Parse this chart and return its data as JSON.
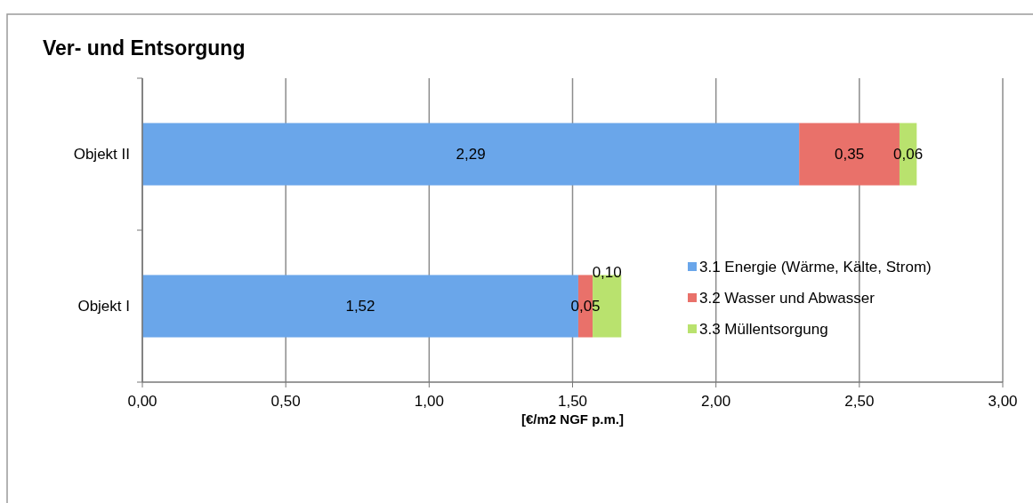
{
  "chart_data": {
    "type": "bar",
    "orientation": "horizontal",
    "stacked": true,
    "title": "Ver- und Entsorgung",
    "xlabel": "[€/m2 NGF p.m.]",
    "categories": [
      "Objekt II",
      "Objekt I"
    ],
    "series": [
      {
        "name": "3.1 Energie (Wärme, Kälte, Strom)",
        "color": "#6aa6ea",
        "values": [
          2.29,
          1.52
        ],
        "value_labels": [
          "2,29",
          "1,52"
        ]
      },
      {
        "name": "3.2 Wasser und Abwasser",
        "color": "#e9716a",
        "values": [
          0.35,
          0.05
        ],
        "value_labels": [
          "0,35",
          "0,05"
        ]
      },
      {
        "name": "3.3 Müllentsorgung",
        "color": "#b9e26e",
        "values": [
          0.06,
          0.1
        ],
        "value_labels": [
          "0,06",
          "0,10"
        ]
      }
    ],
    "xlim": [
      0,
      3
    ],
    "xticks": [
      {
        "value": 0,
        "label": "0,00"
      },
      {
        "value": 0.5,
        "label": "0,50"
      },
      {
        "value": 1,
        "label": "1,00"
      },
      {
        "value": 1.5,
        "label": "1,50"
      },
      {
        "value": 2,
        "label": "2,00"
      },
      {
        "value": 2.5,
        "label": "2,50"
      },
      {
        "value": 3,
        "label": "3,00"
      }
    ],
    "grid": "x",
    "legend": "bottom right"
  }
}
